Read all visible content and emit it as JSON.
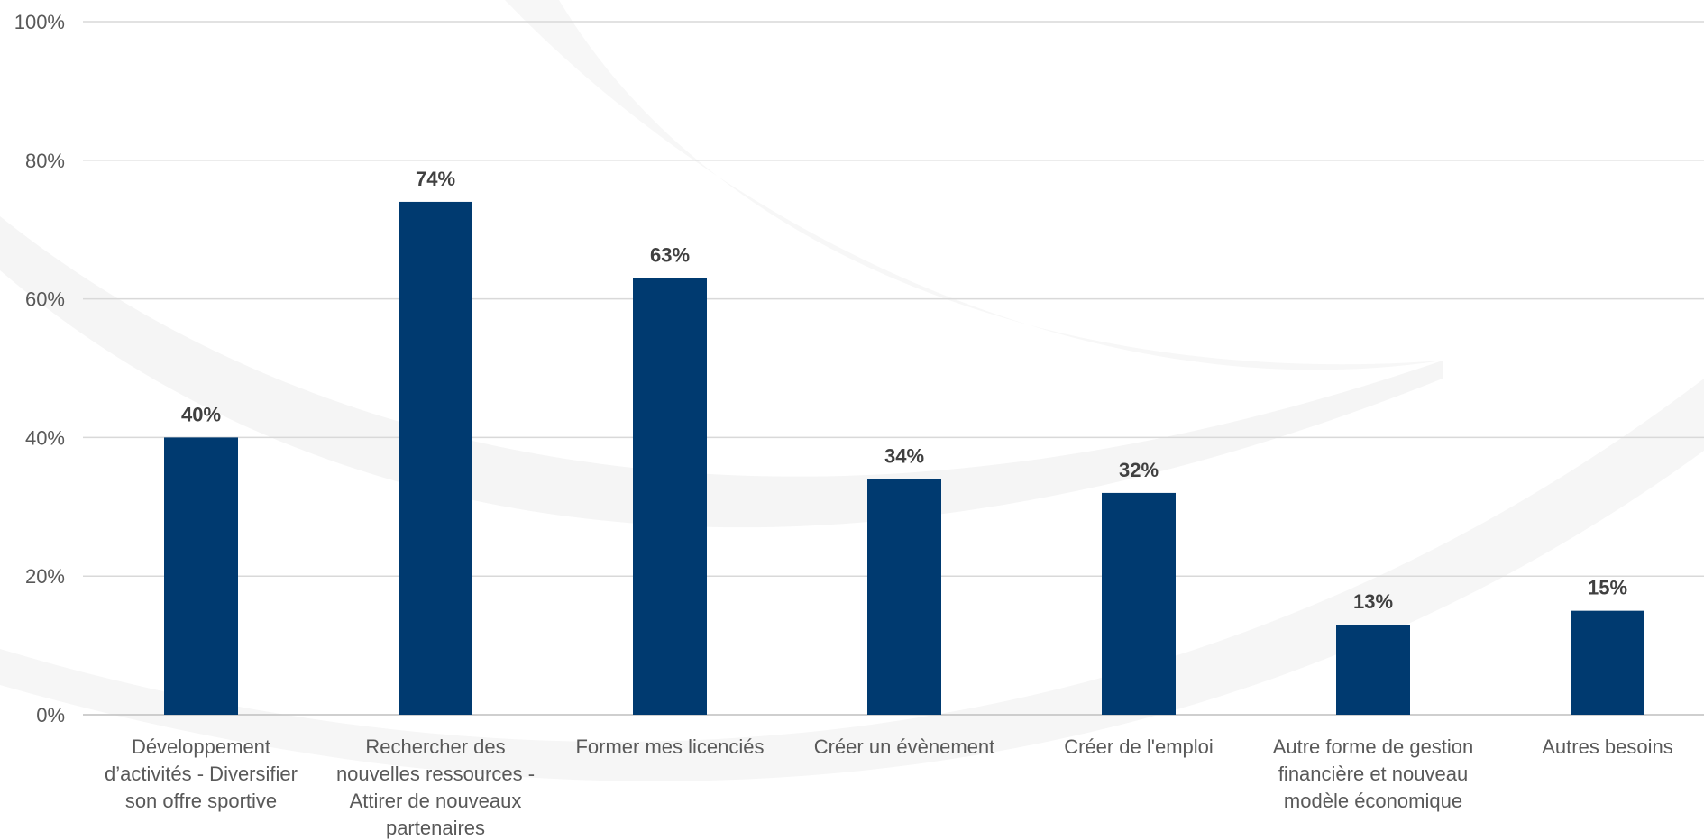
{
  "chart_data": {
    "type": "bar",
    "categories": [
      [
        "Développement",
        "d’activités - Diversifier",
        "son offre sportive"
      ],
      [
        "Rechercher des",
        "nouvelles ressources -",
        "Attirer de nouveaux",
        "partenaires"
      ],
      [
        "Former mes licenciés"
      ],
      [
        "Créer un évènement"
      ],
      [
        "Créer de l'emploi"
      ],
      [
        "Autre forme de gestion",
        "financière et nouveau",
        "modèle économique"
      ],
      [
        "Autres besoins"
      ]
    ],
    "values": [
      40,
      74,
      63,
      34,
      32,
      13,
      15
    ],
    "data_labels": [
      "40%",
      "74%",
      "63%",
      "34%",
      "32%",
      "13%",
      "15%"
    ],
    "y_ticks": [
      0,
      20,
      40,
      60,
      80,
      100
    ],
    "y_tick_labels": [
      "0%",
      "20%",
      "40%",
      "60%",
      "80%",
      "100%"
    ],
    "ylim": [
      0,
      100
    ],
    "title": "",
    "xlabel": "",
    "ylabel": "",
    "grid": true,
    "legend": "none",
    "colors": {
      "bar": "#003a70",
      "grid": "#d9d9d9",
      "background_swoosh": "#f4f4f4"
    }
  }
}
